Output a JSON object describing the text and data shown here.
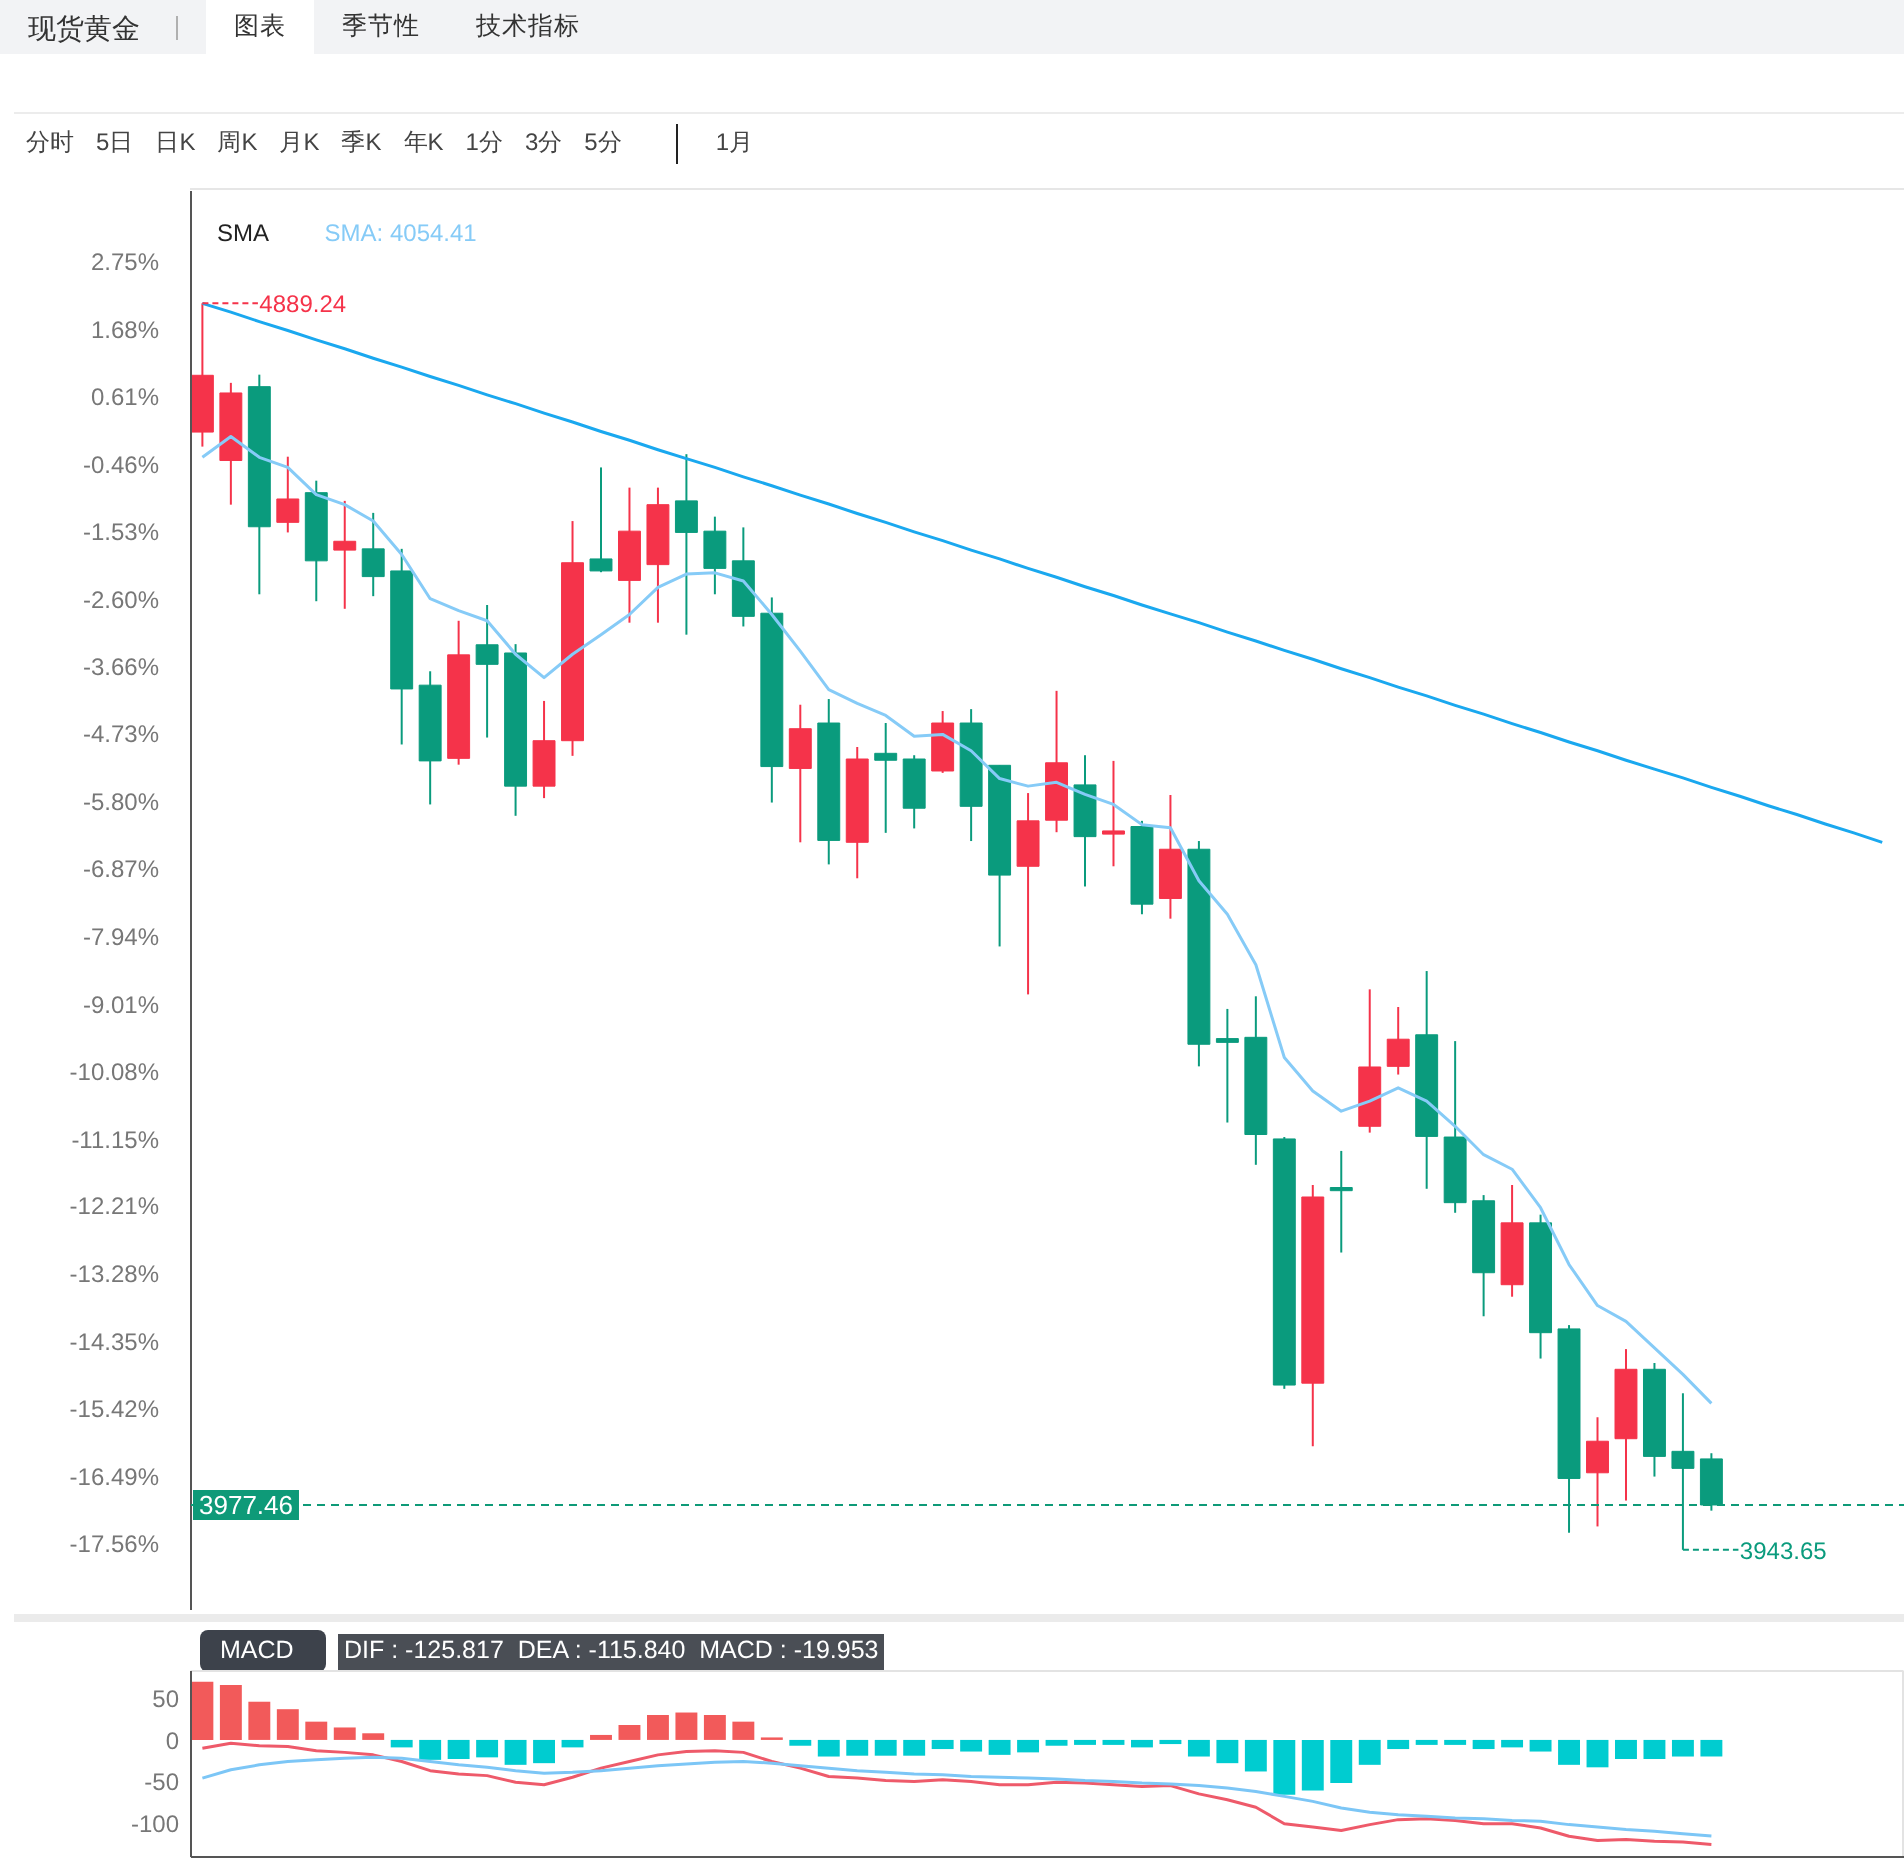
{
  "chart_data": [
    {
      "type": "candlestick",
      "title": "现货黄金",
      "annotations": [
        "图表",
        "季节性",
        "技术指标",
        "分时",
        "5日",
        "日K",
        "周K",
        "月K",
        "季K",
        "年K",
        "1分",
        "3分",
        "5分",
        "1月",
        "4889.24",
        "3943.65",
        "3977.46"
      ],
      "legend": "top left",
      "legend_title": "SMA",
      "tick_labels": "y",
      "categories": [
        null,
        null,
        null,
        null,
        null,
        null,
        null,
        null,
        null,
        null,
        null,
        null,
        null,
        null,
        null,
        null,
        null,
        null,
        null,
        null,
        null,
        null,
        null,
        null,
        null,
        null,
        null,
        null,
        null,
        null,
        null,
        null,
        null,
        null,
        null,
        null,
        null,
        null,
        null,
        null,
        null,
        null,
        null,
        null,
        null,
        null,
        null,
        null,
        null,
        null,
        null,
        null,
        null,
        null,
        null,
        null,
        null,
        null,
        null,
        null
      ],
      "ylim": [
        -18.62,
        3.88
      ],
      "yticks": [
        {
          "value": 2.75,
          "label": "2.75%"
        },
        {
          "value": 1.68,
          "label": "1.68%"
        },
        {
          "value": 0.61,
          "label": "0.61%"
        },
        {
          "value": -0.46,
          "label": "-0.46%"
        },
        {
          "value": -1.53,
          "label": "-1.53%"
        },
        {
          "value": -2.6,
          "label": "-2.60%"
        },
        {
          "value": -3.66,
          "label": "-3.66%"
        },
        {
          "value": -4.73,
          "label": "-4.73%"
        },
        {
          "value": -5.8,
          "label": "-5.80%"
        },
        {
          "value": -6.87,
          "label": "-6.87%"
        },
        {
          "value": -7.94,
          "label": "-7.94%"
        },
        {
          "value": -9.01,
          "label": "-9.01%"
        },
        {
          "value": -10.08,
          "label": "-10.08%"
        },
        {
          "value": -11.15,
          "label": "-11.15%"
        },
        {
          "value": -12.21,
          "label": "-12.21%"
        },
        {
          "value": -13.28,
          "label": "-13.28%"
        },
        {
          "value": -14.35,
          "label": "-14.35%"
        },
        {
          "value": -15.42,
          "label": "-15.42%"
        },
        {
          "value": -16.49,
          "label": "-16.49%"
        },
        {
          "value": -17.56,
          "label": "-17.56%"
        }
      ],
      "ohlc": [
        [
          0.06,
          2.1,
          -0.17,
          0.96
        ],
        [
          -0.39,
          0.84,
          -1.09,
          0.68
        ],
        [
          0.78,
          0.97,
          -2.51,
          -1.44
        ],
        [
          -1.37,
          -0.33,
          -1.53,
          -1.0
        ],
        [
          -0.9,
          -0.71,
          -2.62,
          -1.98
        ],
        [
          -1.81,
          -1.03,
          -2.74,
          -1.67
        ],
        [
          -1.79,
          -1.22,
          -2.54,
          -2.23
        ],
        [
          -2.14,
          -1.79,
          -4.89,
          -4.01
        ],
        [
          -3.95,
          -3.73,
          -5.84,
          -5.15
        ],
        [
          -5.11,
          -2.93,
          -5.21,
          -3.47
        ],
        [
          -3.31,
          -2.68,
          -4.78,
          -3.62
        ],
        [
          -3.44,
          -3.3,
          -6.02,
          -5.55
        ],
        [
          -5.55,
          -4.2,
          -5.74,
          -4.83
        ],
        [
          -4.83,
          -1.35,
          -5.07,
          -2.01
        ],
        [
          -1.95,
          -0.5,
          -2.16,
          -2.14
        ],
        [
          -2.29,
          -0.82,
          -2.96,
          -1.51
        ],
        [
          -2.04,
          -0.82,
          -2.96,
          -1.09
        ],
        [
          -1.03,
          -0.29,
          -3.15,
          -1.53
        ],
        [
          -1.51,
          -1.28,
          -2.51,
          -2.1
        ],
        [
          -1.98,
          -1.45,
          -3.02,
          -2.86
        ],
        [
          -2.81,
          -2.56,
          -5.81,
          -5.24
        ],
        [
          -5.27,
          -4.26,
          -6.44,
          -4.64
        ],
        [
          -4.55,
          -4.17,
          -6.79,
          -6.41
        ],
        [
          -6.44,
          -4.93,
          -7.01,
          -5.12
        ],
        [
          -5.03,
          -4.55,
          -6.29,
          -5.14
        ],
        [
          -5.12,
          -5.06,
          -6.22,
          -5.9
        ],
        [
          -5.31,
          -4.36,
          -5.34,
          -4.55
        ],
        [
          -4.55,
          -4.33,
          -6.42,
          -5.87
        ],
        [
          -5.22,
          -5.22,
          -8.09,
          -6.96
        ],
        [
          -6.82,
          -5.66,
          -8.85,
          -6.1
        ],
        [
          -6.09,
          -4.04,
          -6.28,
          -5.18
        ],
        [
          -5.53,
          -5.06,
          -7.14,
          -6.35
        ],
        [
          -6.31,
          -5.15,
          -6.82,
          -6.26
        ],
        [
          -6.19,
          -6.1,
          -7.58,
          -7.42
        ],
        [
          -7.33,
          -5.69,
          -7.65,
          -6.55
        ],
        [
          -6.55,
          -6.42,
          -9.99,
          -9.64
        ],
        [
          -9.55,
          -9.08,
          -10.88,
          -9.61
        ],
        [
          -9.53,
          -8.88,
          -11.55,
          -11.07
        ],
        [
          -11.14,
          -11.11,
          -15.1,
          -15.04
        ],
        [
          -15.01,
          -11.87,
          -16.01,
          -12.06
        ],
        [
          -11.91,
          -11.33,
          -12.94,
          -11.96
        ],
        [
          -10.94,
          -8.77,
          -11.04,
          -10.0
        ],
        [
          -9.99,
          -9.05,
          -10.12,
          -9.56
        ],
        [
          -9.49,
          -8.48,
          -11.93,
          -11.1
        ],
        [
          -11.11,
          -9.59,
          -12.31,
          -12.15
        ],
        [
          -12.12,
          -12.03,
          -13.95,
          -13.26
        ],
        [
          -13.45,
          -11.87,
          -13.64,
          -12.47
        ],
        [
          -12.47,
          -12.34,
          -14.62,
          -14.21
        ],
        [
          -14.15,
          -14.09,
          -17.38,
          -16.52
        ],
        [
          -16.43,
          -15.55,
          -17.28,
          -15.93
        ],
        [
          -15.89,
          -14.47,
          -16.87,
          -14.79
        ],
        [
          -14.79,
          -14.69,
          -16.49,
          -16.17
        ],
        [
          -16.09,
          -15.17,
          -17.65,
          -16.36
        ],
        [
          -16.21,
          -16.12,
          -17.03,
          -16.94
        ],
        null,
        null,
        null,
        null,
        null,
        null
      ],
      "colors": [
        "#f5334a",
        "#f5334a",
        "#0a9b7d",
        "#f5334a",
        "#0a9b7d",
        "#f5334a",
        "#0a9b7d",
        "#0a9b7d",
        "#0a9b7d",
        "#f5334a",
        "#0a9b7d",
        "#0a9b7d",
        "#f5334a",
        "#f5334a",
        "#0a9b7d",
        "#f5334a",
        "#f5334a",
        "#0a9b7d",
        "#0a9b7d",
        "#0a9b7d",
        "#0a9b7d",
        "#f5334a",
        "#0a9b7d",
        "#f5334a",
        "#0a9b7d",
        "#0a9b7d",
        "#f5334a",
        "#0a9b7d",
        "#0a9b7d",
        "#f5334a",
        "#f5334a",
        "#0a9b7d",
        "#f5334a",
        "#0a9b7d",
        "#f5334a",
        "#0a9b7d",
        "#0a9b7d",
        "#0a9b7d",
        "#0a9b7d",
        "#f5334a",
        "#0a9b7d",
        "#f5334a",
        "#f5334a",
        "#0a9b7d",
        "#0a9b7d",
        "#0a9b7d",
        "#f5334a",
        "#0a9b7d",
        "#0a9b7d",
        "#f5334a",
        "#f5334a",
        "#0a9b7d",
        "#0a9b7d",
        "#0a9b7d",
        null,
        null,
        null,
        null,
        null,
        null
      ],
      "series": [
        {
          "name": "SMA: 4054.41",
          "type": "line",
          "color": "#86cbf7",
          "values": [
            -0.34,
            -0.01,
            -0.34,
            -0.5,
            -0.93,
            -1.09,
            -1.35,
            -1.88,
            -2.58,
            -2.77,
            -2.93,
            -3.46,
            -3.83,
            -3.46,
            -3.15,
            -2.83,
            -2.4,
            -2.19,
            -2.17,
            -2.3,
            -2.83,
            -3.41,
            -4.02,
            -4.24,
            -4.43,
            -4.76,
            -4.73,
            -4.99,
            -5.43,
            -5.55,
            -5.49,
            -5.68,
            -5.84,
            -6.16,
            -6.21,
            -7.05,
            -7.58,
            -8.38,
            -9.85,
            -10.38,
            -10.7,
            -10.54,
            -10.33,
            -10.54,
            -10.94,
            -11.39,
            -11.62,
            -12.23,
            -13.13,
            -13.78,
            -14.03,
            -14.45,
            -14.87,
            -15.33,
            null,
            null,
            null,
            null,
            null,
            null
          ]
        },
        {
          "type": "line",
          "color": "#1aa8ef",
          "values": [
            2.1,
            1.96,
            1.81,
            1.67,
            1.52,
            1.38,
            1.23,
            1.09,
            0.94,
            0.8,
            0.65,
            0.51,
            0.36,
            0.22,
            0.07,
            -0.07,
            -0.22,
            -0.36,
            -0.5,
            -0.65,
            -0.79,
            -0.94,
            -1.08,
            -1.23,
            -1.37,
            -1.52,
            -1.66,
            -1.81,
            -1.95,
            -2.1,
            -2.24,
            -2.39,
            -2.53,
            -2.68,
            -2.82,
            -2.96,
            -3.11,
            -3.25,
            -3.4,
            -3.54,
            -3.69,
            -3.83,
            -3.98,
            -4.12,
            -4.27,
            -4.41,
            -4.56,
            -4.7,
            -4.85,
            -4.99,
            -5.14,
            -5.28,
            -5.42,
            -5.57,
            -5.71,
            -5.86,
            -6.0,
            -6.15,
            -6.29,
            -6.44
          ]
        }
      ],
      "ref_lines": [
        {
          "axis": "y",
          "value": -16.94,
          "color": "#0e9a78",
          "line_style": "dashed"
        }
      ]
    },
    {
      "type": "bar",
      "title": "MACD",
      "annotations": [
        "DIF : -125.817  DEA : -115.840  MACD : -19.953"
      ],
      "tick_labels": "y",
      "categories": [
        null,
        null,
        null,
        null,
        null,
        null,
        null,
        null,
        null,
        null,
        null,
        null,
        null,
        null,
        null,
        null,
        null,
        null,
        null,
        null,
        null,
        null,
        null,
        null,
        null,
        null,
        null,
        null,
        null,
        null,
        null,
        null,
        null,
        null,
        null,
        null,
        null,
        null,
        null,
        null,
        null,
        null,
        null,
        null,
        null,
        null,
        null,
        null,
        null,
        null,
        null,
        null,
        null,
        null,
        null,
        null,
        null,
        null,
        null,
        null
      ],
      "ylim": [
        -141,
        83
      ],
      "yticks": [
        50,
        0,
        -50,
        -100
      ],
      "series": [
        {
          "colors": [
            "#f25a5a",
            "#f25a5a",
            "#f25a5a",
            "#f25a5a",
            "#f25a5a",
            "#f25a5a",
            "#f25a5a",
            "#00ccd0",
            "#00ccd0",
            "#00ccd0",
            "#00ccd0",
            "#00ccd0",
            "#00ccd0",
            "#00ccd0",
            "#f25a5a",
            "#f25a5a",
            "#f25a5a",
            "#f25a5a",
            "#f25a5a",
            "#f25a5a",
            "#f25a5a",
            "#00ccd0",
            "#00ccd0",
            "#00ccd0",
            "#00ccd0",
            "#00ccd0",
            "#00ccd0",
            "#00ccd0",
            "#00ccd0",
            "#00ccd0",
            "#00ccd0",
            "#00ccd0",
            "#00ccd0",
            "#00ccd0",
            "#00ccd0",
            "#00ccd0",
            "#00ccd0",
            "#00ccd0",
            "#00ccd0",
            "#00ccd0",
            "#00ccd0",
            "#00ccd0",
            "#00ccd0",
            "#00ccd0",
            "#00ccd0",
            "#00ccd0",
            "#00ccd0",
            "#00ccd0",
            "#00ccd0",
            "#00ccd0",
            "#00ccd0",
            "#00ccd0",
            "#00ccd0",
            "#00ccd0",
            null,
            null,
            null,
            null,
            null,
            null
          ],
          "values": [
            70,
            66,
            46,
            37,
            22,
            15,
            8,
            -9,
            -24,
            -23,
            -21,
            -30,
            -28,
            -9,
            6,
            18,
            30,
            33,
            30,
            22,
            3,
            -7,
            -20,
            -19,
            -19,
            -19,
            -11,
            -14,
            -18,
            -15,
            -7,
            -6,
            -6,
            -9,
            -5,
            -20,
            -28,
            -38,
            -66,
            -61,
            -52,
            -30,
            -11,
            -6,
            -6,
            -11,
            -9,
            -14,
            -30,
            -33,
            -23,
            -23,
            -20,
            -19.953,
            null,
            null,
            null,
            null,
            null,
            null
          ]
        },
        {
          "type": "line",
          "color": "#ee5a6a",
          "values": [
            -10,
            -4,
            -7,
            -8,
            -13,
            -15,
            -18,
            -26,
            -37,
            -41,
            -43,
            -51,
            -54,
            -45,
            -34,
            -26,
            -18,
            -14,
            -13,
            -15,
            -26,
            -34,
            -44,
            -46,
            -49,
            -50,
            -48,
            -50,
            -54,
            -54,
            -51,
            -52,
            -54,
            -56,
            -55,
            -65,
            -72,
            -81,
            -101,
            -105,
            -109,
            -102,
            -96,
            -95,
            -97,
            -101,
            -101,
            -106,
            -116,
            -121,
            -120,
            -122,
            -123,
            -125.817,
            null,
            null,
            null,
            null,
            null,
            null
          ]
        },
        {
          "type": "line",
          "color": "#7cc6f6",
          "values": [
            -46,
            -36,
            -30,
            -26,
            -24,
            -22,
            -21,
            -22,
            -26,
            -30,
            -33,
            -37,
            -40,
            -39,
            -37,
            -34,
            -31,
            -29,
            -27,
            -26,
            -28,
            -31,
            -34,
            -37,
            -39,
            -41,
            -42,
            -44,
            -45,
            -46,
            -47,
            -49,
            -50,
            -52,
            -53,
            -55,
            -58,
            -62,
            -68,
            -74,
            -82,
            -87,
            -90,
            -92,
            -94,
            -95,
            -97,
            -98,
            -102,
            -105,
            -108,
            -110,
            -113,
            -115.84,
            null,
            null,
            null,
            null,
            null,
            null
          ]
        }
      ]
    }
  ]
}
